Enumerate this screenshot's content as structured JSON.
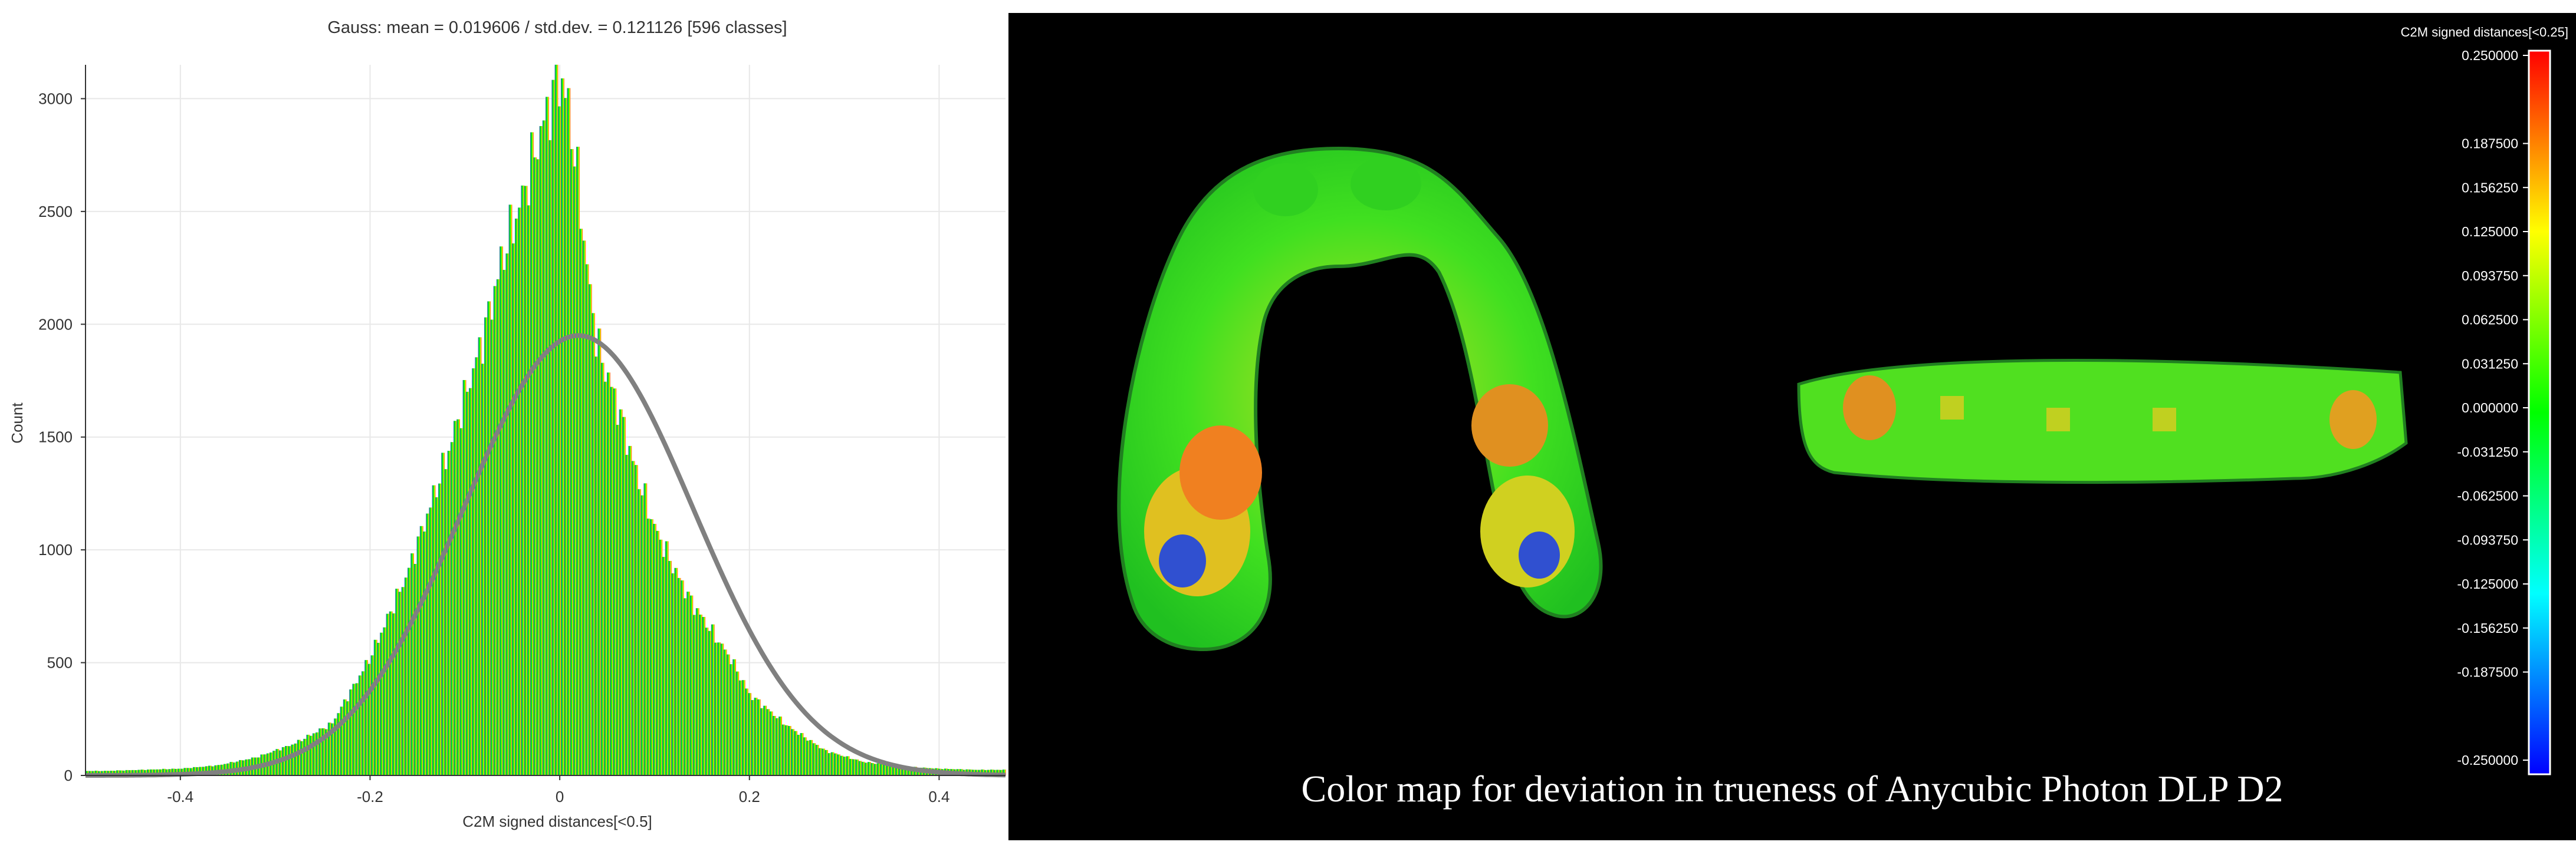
{
  "chart_data": {
    "type": "bar",
    "title": "Gauss: mean = 0.019606 / std.dev. = 0.121126 [596 classes]",
    "xlabel": "C2M signed distances[<0.5]",
    "ylabel": "Count",
    "xlim": [
      -0.5,
      0.47
    ],
    "ylim": [
      0,
      3150
    ],
    "xticks": [
      -0.4,
      -0.2,
      0,
      0.2,
      0.4
    ],
    "xtick_labels": [
      "-0.4",
      "-0.2",
      "0",
      "0.2",
      "0.4"
    ],
    "yticks": [
      0,
      500,
      1000,
      1500,
      2000,
      2500,
      3000
    ],
    "ytick_labels": [
      "0",
      "500",
      "1000",
      "1500",
      "2000",
      "2500",
      "3000"
    ],
    "grid": true,
    "histogram": {
      "bin_centers": [
        -0.48,
        -0.44,
        -0.4,
        -0.36,
        -0.32,
        -0.28,
        -0.24,
        -0.2,
        -0.16,
        -0.12,
        -0.08,
        -0.06,
        -0.04,
        -0.02,
        0.0,
        0.01,
        0.02,
        0.03,
        0.04,
        0.06,
        0.08,
        0.1,
        0.12,
        0.14,
        0.16,
        0.18,
        0.2,
        0.24,
        0.28,
        0.32,
        0.36,
        0.4,
        0.44
      ],
      "counts": [
        20,
        25,
        30,
        45,
        80,
        140,
        230,
        520,
        900,
        1400,
        1950,
        2300,
        2550,
        2850,
        3100,
        2950,
        2600,
        2200,
        1900,
        1650,
        1350,
        1100,
        920,
        760,
        640,
        520,
        360,
        220,
        110,
        60,
        40,
        30,
        25
      ]
    },
    "gauss_curve": {
      "mean": 0.019606,
      "std": 0.121126,
      "peak": 1950,
      "color": "#808080"
    },
    "color_scale": [
      "#1a2aff",
      "#00ff00",
      "#ffff00",
      "#ff0000"
    ]
  },
  "colorbar": {
    "title": "C2M signed distances[<0.25]",
    "ticks": [
      "0.250000",
      "0.187500",
      "0.156250",
      "0.125000",
      "0.093750",
      "0.062500",
      "0.031250",
      "0.000000",
      "-0.031250",
      "-0.062500",
      "-0.093750",
      "-0.125000",
      "-0.156250",
      "-0.187500",
      "-0.250000"
    ],
    "tick_values": [
      0.25,
      0.1875,
      0.15625,
      0.125,
      0.09375,
      0.0625,
      0.03125,
      0.0,
      -0.03125,
      -0.0625,
      -0.09375,
      -0.125,
      -0.15625,
      -0.1875,
      -0.25
    ],
    "colors": [
      "#ff0000",
      "#ffff00",
      "#00ff00",
      "#00ffff",
      "#0000ff"
    ]
  },
  "caption": "Color map for deviation in trueness of Anycubic Photon DLP D2"
}
